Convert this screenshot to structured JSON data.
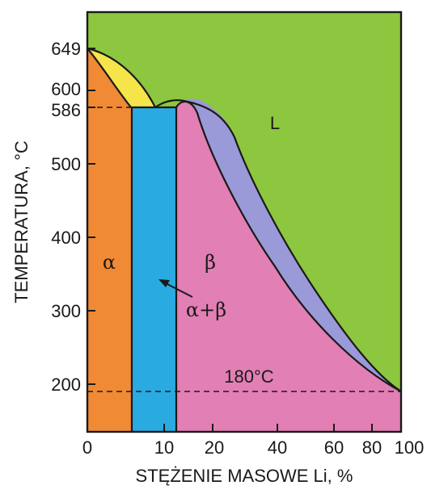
{
  "diagram": {
    "y_axis_title": "TEMPERATURA, °C",
    "x_axis_title": "STĘŻENIE MASOWE Li, %",
    "y_ticks": [
      "649",
      "600",
      "586",
      "500",
      "400",
      "300",
      "200"
    ],
    "x_ticks": [
      "0",
      "10",
      "20",
      "40",
      "60",
      "80",
      "100"
    ],
    "phases": {
      "liquid": "L",
      "alpha": "α",
      "beta": "β",
      "alpha_beta": "α+β"
    },
    "annotation": "180°C",
    "colors": {
      "liquid": "#8dc63f",
      "liquid_alpha": "#f5e44a",
      "alpha": "#f08a35",
      "alpha_beta": "#29abe2",
      "beta": "#e27fb4",
      "liquid_beta": "#9a9ad8",
      "frame": "#1a1a1a"
    }
  }
}
